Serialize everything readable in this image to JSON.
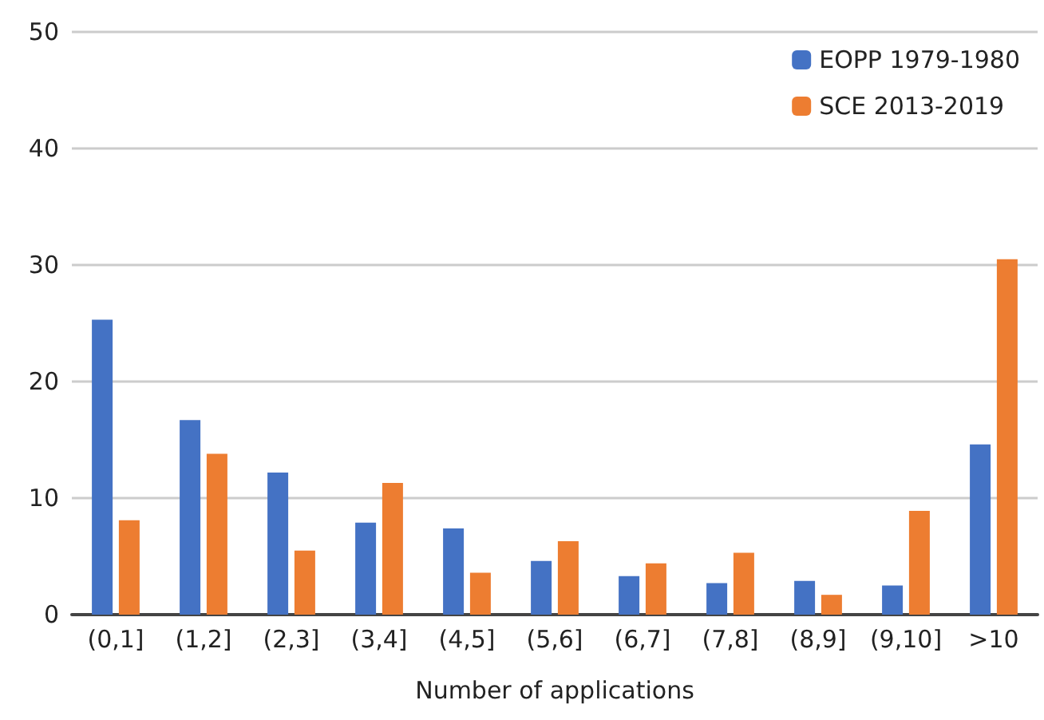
{
  "chart_data": {
    "type": "bar",
    "xlabel": "Number of applications",
    "categories": [
      "(0,1]",
      "(1,2]",
      "(2,3]",
      "(3,4]",
      "(4,5]",
      "(5,6]",
      "(6,7]",
      "(7,8]",
      "(8,9]",
      "(9,10]",
      ">10"
    ],
    "series": [
      {
        "name": "EOPP 1979-1980",
        "color": "#4472c4",
        "values": [
          25.3,
          16.7,
          12.2,
          7.9,
          7.4,
          4.6,
          3.3,
          2.7,
          2.9,
          2.5,
          14.6
        ]
      },
      {
        "name": "SCE 2013-2019",
        "color": "#ed7d31",
        "values": [
          8.1,
          13.8,
          5.5,
          11.3,
          3.6,
          6.3,
          4.4,
          5.3,
          1.7,
          8.9,
          30.5
        ]
      }
    ],
    "ylim": [
      0,
      50
    ],
    "yticks": [
      0,
      10,
      20,
      30,
      40,
      50
    ],
    "grid": "y",
    "legend": "top right"
  }
}
